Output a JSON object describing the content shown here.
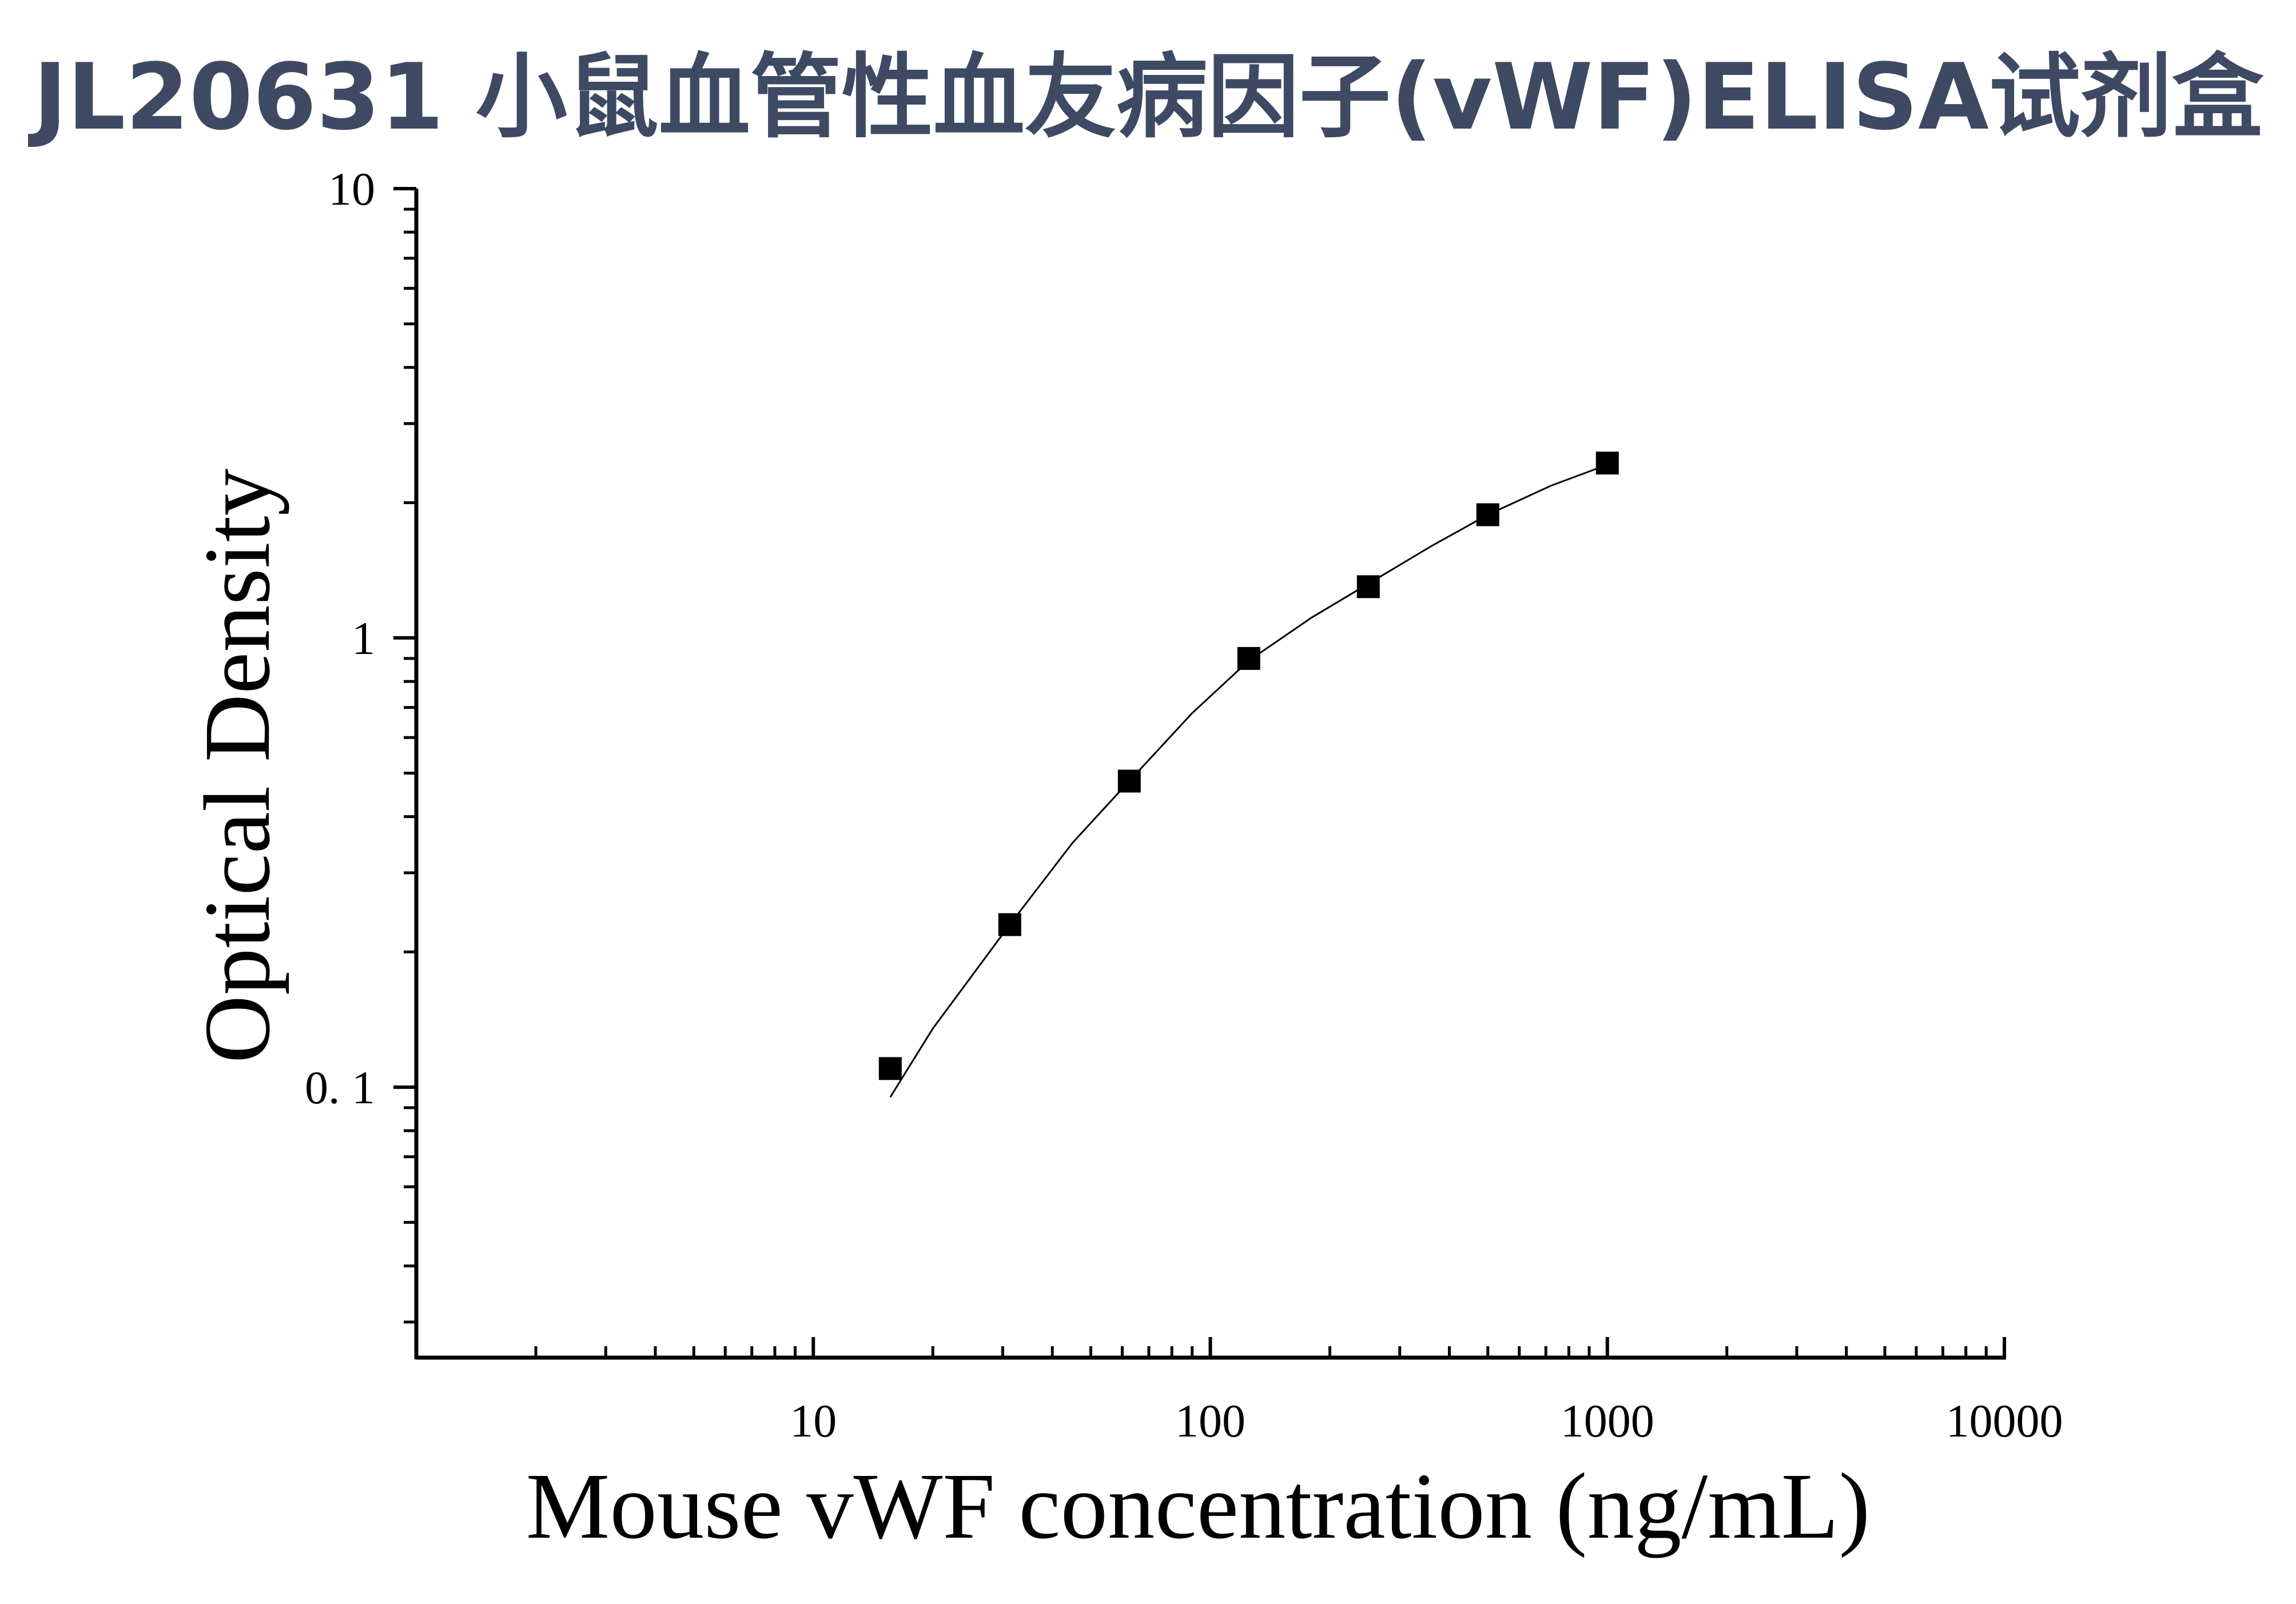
{
  "title": "JL20631 小鼠血管性血友病因子(vWF)ELISA试剂盒",
  "chart_data": {
    "type": "scatter",
    "xlabel": "Mouse vWF concentration (ng/mL)",
    "ylabel": "Optical Density",
    "x_scale": "log",
    "y_scale": "log",
    "xlim": [
      1,
      10000
    ],
    "ylim": [
      0.025,
      10
    ],
    "x_ticks": [
      {
        "value": 10,
        "label": "10"
      },
      {
        "value": 100,
        "label": "100"
      },
      {
        "value": 1000,
        "label": "1000"
      },
      {
        "value": 10000,
        "label": "10000"
      }
    ],
    "y_ticks": [
      {
        "value": 0.1,
        "label": "0. 1"
      },
      {
        "value": 1,
        "label": "1"
      },
      {
        "value": 10,
        "label": "10"
      }
    ],
    "grid": false,
    "legend": "none",
    "series": [
      {
        "marker": "square",
        "color": "#000000",
        "x": [
          15.625,
          31.25,
          62.5,
          125,
          250,
          500,
          1000
        ],
        "y": [
          0.11,
          0.23,
          0.48,
          0.9,
          1.3,
          1.88,
          2.45
        ]
      }
    ],
    "fit_curve": {
      "type": "line",
      "color": "#000000",
      "x": [
        15.625,
        20,
        31.25,
        45,
        62.5,
        90,
        125,
        180,
        250,
        360,
        500,
        720,
        1000
      ],
      "y": [
        0.095,
        0.135,
        0.23,
        0.35,
        0.48,
        0.68,
        0.89,
        1.11,
        1.32,
        1.6,
        1.88,
        2.18,
        2.43
      ]
    }
  }
}
